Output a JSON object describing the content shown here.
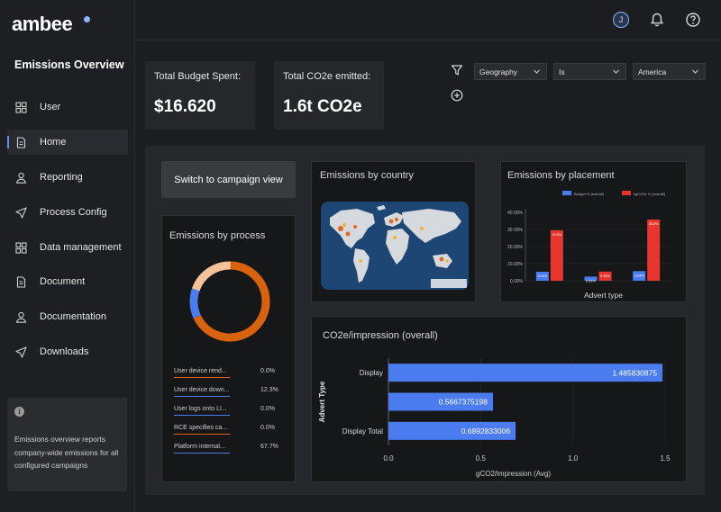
{
  "app": {
    "logo": "ambee",
    "section_title": "Emissions Overview"
  },
  "sidebar": {
    "items": [
      {
        "label": "User",
        "icon": "grid-icon",
        "active": false
      },
      {
        "label": "Home",
        "icon": "document-icon",
        "active": true
      },
      {
        "label": "Reporting",
        "icon": "person-icon",
        "active": false
      },
      {
        "label": "Process Config",
        "icon": "send-icon",
        "active": false
      },
      {
        "label": "Data management",
        "icon": "grid-icon",
        "active": false
      },
      {
        "label": "Document",
        "icon": "document-icon",
        "active": false
      },
      {
        "label": "Documentation",
        "icon": "person-icon",
        "active": false
      },
      {
        "label": "Downloads",
        "icon": "send-icon",
        "active": false
      }
    ],
    "info": {
      "icon": "info-icon",
      "glyph": "i",
      "text": "Emissions overview reports company-wide emissions for all configured campaigns"
    }
  },
  "topbar": {
    "avatar_initial": "J",
    "icons": [
      "bell-icon",
      "help-icon"
    ]
  },
  "kpis": [
    {
      "label": "Total Budget Spent:",
      "value": "$16.620"
    },
    {
      "label": "Total CO2e emitted:",
      "value": "1.6t CO2e"
    }
  ],
  "filters": [
    {
      "value": "Geography"
    },
    {
      "value": "Is"
    },
    {
      "value": "America"
    }
  ],
  "campaign_button": "Switch to campaign view",
  "process_card": {
    "title": "Emissions by process",
    "rows": [
      {
        "name": "User device rend...",
        "value": "0.0%",
        "color": "#e0601a"
      },
      {
        "name": "User device down...",
        "value": "12.3%",
        "color": "#4a7cf0"
      },
      {
        "name": "User logs onto LI...",
        "value": "0.0%",
        "color": "#4a7cf0"
      },
      {
        "name": "RCE specifies ca...",
        "value": "0.0%",
        "color": "#e0601a"
      },
      {
        "name": "Platform internal...",
        "value": "67.7%",
        "color": "#4a7cf0"
      }
    ],
    "donut": [
      {
        "share": 0.677,
        "color": "#d9620f"
      },
      {
        "share": 0.123,
        "color": "#4a7cf0"
      },
      {
        "share": 0.2,
        "color": "#f6c29a"
      }
    ]
  },
  "country_card": {
    "title": "Emissions by country"
  },
  "chart_data": [
    {
      "type": "bar",
      "title": "Emissions by placement",
      "xlabel": "Advert type",
      "ylabel": "",
      "ylim": [
        0,
        40
      ],
      "yticks": [
        "0.00%",
        "10.00%",
        "20.00%",
        "30.00%",
        "40.00%"
      ],
      "categories": [
        "",
        "",
        ""
      ],
      "series": [
        {
          "name": "Budget % (overall)",
          "color": "#4a7cf0",
          "values": [
            5.26,
            2.42,
            5.63
          ],
          "labels": [
            "5.26%",
            "2.42%",
            "5.63%"
          ]
        },
        {
          "name": "kgCO2e % (overall)",
          "color": "#e8352e",
          "values": [
            29.5,
            5.36,
            35.8
          ],
          "labels": [
            "29.5%",
            "5.36%",
            "35.8%"
          ]
        }
      ],
      "legend": "top"
    },
    {
      "type": "bar",
      "orientation": "horizontal",
      "title": "CO2e/impression (overall)",
      "xlabel": "gCO2/impression (Avg)",
      "ylabel": "Advert Type",
      "xlim": [
        0,
        1.5
      ],
      "xticks": [
        "0.0",
        "0.5",
        "1.0",
        "1.5"
      ],
      "categories": [
        "Display",
        "",
        "Display Total"
      ],
      "values": [
        1.485830875,
        0.5667375198,
        0.6892833006
      ],
      "labels": [
        "1.485830875",
        "0.5667375198",
        "0.6892833006"
      ],
      "color": "#4a7cf0"
    }
  ]
}
